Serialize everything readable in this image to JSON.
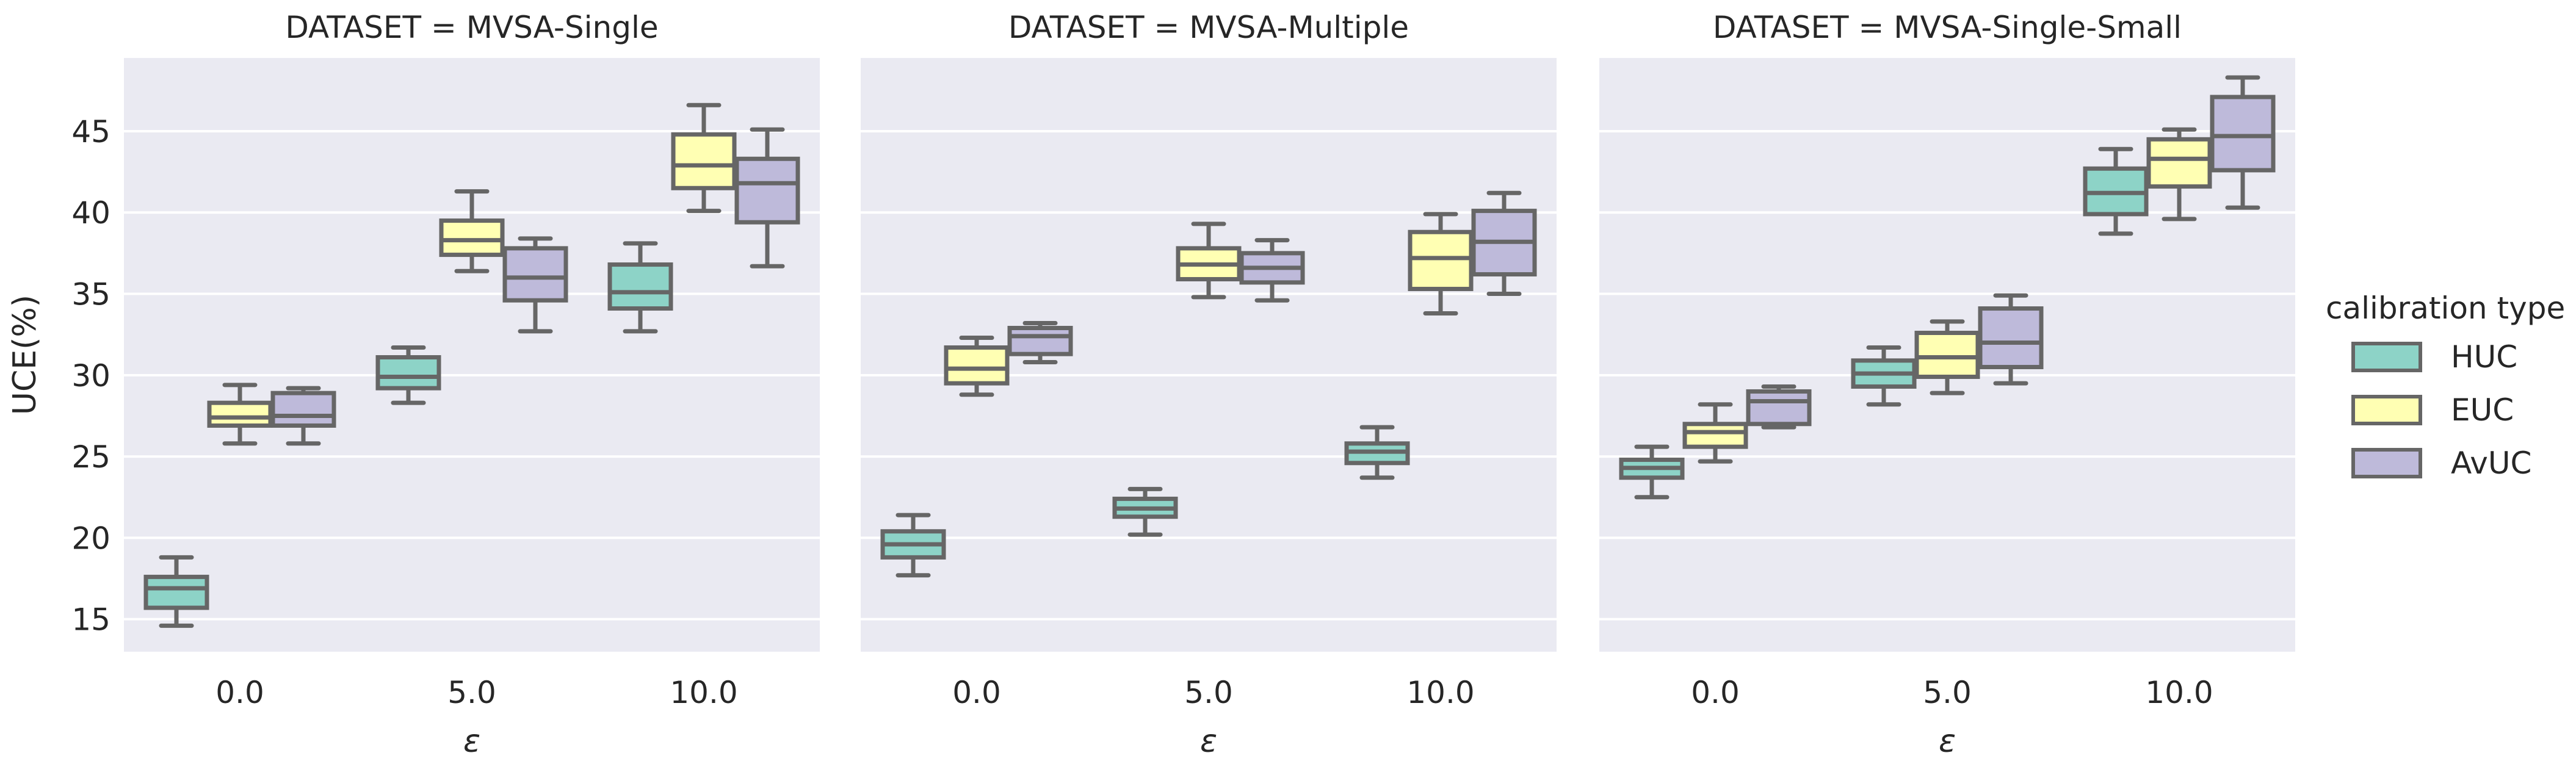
{
  "figure": {
    "ylabel": "UCE(%)",
    "xlabel": "ε",
    "legend_title": "calibration type"
  },
  "chart_data": {
    "type": "box",
    "facet_titles": [
      "DATASET = MVSA-Single",
      "DATASET = MVSA-Multiple",
      "DATASET = MVSA-Single-Small"
    ],
    "categories": [
      "0.0",
      "5.0",
      "10.0"
    ],
    "xlabel": "ε",
    "ylabel": "UCE(%)",
    "yticks": [
      15,
      20,
      25,
      30,
      35,
      40,
      45
    ],
    "ylim": [
      13,
      49.5
    ],
    "grid": true,
    "legend": {
      "title": "calibration type",
      "placement": "right",
      "items": [
        {
          "name": "HUC",
          "color": "#8dd3c7"
        },
        {
          "name": "EUC",
          "color": "#ffffb3"
        },
        {
          "name": "AvUC",
          "color": "#bebada"
        }
      ]
    },
    "colors": {
      "background": "#eaeaf2",
      "grid": "#ffffff",
      "box_edge": "#666666",
      "text": "#262626"
    },
    "facets": [
      {
        "title": "DATASET = MVSA-Single",
        "boxes": [
          {
            "epsilon": "0.0",
            "series": "HUC",
            "whisker_low": 14.6,
            "q1": 15.7,
            "median": 16.9,
            "q3": 17.6,
            "whisker_high": 18.8
          },
          {
            "epsilon": "0.0",
            "series": "EUC",
            "whisker_low": 25.8,
            "q1": 26.9,
            "median": 27.4,
            "q3": 28.3,
            "whisker_high": 29.4
          },
          {
            "epsilon": "0.0",
            "series": "AvUC",
            "whisker_low": 25.8,
            "q1": 26.9,
            "median": 27.5,
            "q3": 28.9,
            "whisker_high": 29.2
          },
          {
            "epsilon": "5.0",
            "series": "HUC",
            "whisker_low": 28.3,
            "q1": 29.2,
            "median": 29.9,
            "q3": 31.1,
            "whisker_high": 31.7
          },
          {
            "epsilon": "5.0",
            "series": "EUC",
            "whisker_low": 36.4,
            "q1": 37.4,
            "median": 38.3,
            "q3": 39.5,
            "whisker_high": 41.3
          },
          {
            "epsilon": "5.0",
            "series": "AvUC",
            "whisker_low": 32.7,
            "q1": 34.6,
            "median": 36.0,
            "q3": 37.8,
            "whisker_high": 38.4
          },
          {
            "epsilon": "10.0",
            "series": "HUC",
            "whisker_low": 32.7,
            "q1": 34.1,
            "median": 35.1,
            "q3": 36.8,
            "whisker_high": 38.1
          },
          {
            "epsilon": "10.0",
            "series": "EUC",
            "whisker_low": 40.1,
            "q1": 41.5,
            "median": 42.9,
            "q3": 44.8,
            "whisker_high": 46.6
          },
          {
            "epsilon": "10.0",
            "series": "AvUC",
            "whisker_low": 36.7,
            "q1": 39.4,
            "median": 41.8,
            "q3": 43.3,
            "whisker_high": 45.1
          }
        ]
      },
      {
        "title": "DATASET = MVSA-Multiple",
        "boxes": [
          {
            "epsilon": "0.0",
            "series": "HUC",
            "whisker_low": 17.7,
            "q1": 18.8,
            "median": 19.6,
            "q3": 20.4,
            "whisker_high": 21.4
          },
          {
            "epsilon": "0.0",
            "series": "EUC",
            "whisker_low": 28.8,
            "q1": 29.5,
            "median": 30.4,
            "q3": 31.7,
            "whisker_high": 32.3
          },
          {
            "epsilon": "0.0",
            "series": "AvUC",
            "whisker_low": 30.8,
            "q1": 31.3,
            "median": 32.4,
            "q3": 32.9,
            "whisker_high": 33.2
          },
          {
            "epsilon": "5.0",
            "series": "HUC",
            "whisker_low": 20.2,
            "q1": 21.3,
            "median": 21.8,
            "q3": 22.4,
            "whisker_high": 23.0
          },
          {
            "epsilon": "5.0",
            "series": "EUC",
            "whisker_low": 34.8,
            "q1": 35.9,
            "median": 36.8,
            "q3": 37.8,
            "whisker_high": 39.3
          },
          {
            "epsilon": "5.0",
            "series": "AvUC",
            "whisker_low": 34.6,
            "q1": 35.7,
            "median": 36.6,
            "q3": 37.5,
            "whisker_high": 38.3
          },
          {
            "epsilon": "10.0",
            "series": "HUC",
            "whisker_low": 23.7,
            "q1": 24.6,
            "median": 25.3,
            "q3": 25.8,
            "whisker_high": 26.8
          },
          {
            "epsilon": "10.0",
            "series": "EUC",
            "whisker_low": 33.8,
            "q1": 35.3,
            "median": 37.2,
            "q3": 38.8,
            "whisker_high": 39.9
          },
          {
            "epsilon": "10.0",
            "series": "AvUC",
            "whisker_low": 35.0,
            "q1": 36.2,
            "median": 38.2,
            "q3": 40.1,
            "whisker_high": 41.2
          }
        ]
      },
      {
        "title": "DATASET = MVSA-Single-Small",
        "boxes": [
          {
            "epsilon": "0.0",
            "series": "HUC",
            "whisker_low": 22.5,
            "q1": 23.7,
            "median": 24.3,
            "q3": 24.8,
            "whisker_high": 25.6
          },
          {
            "epsilon": "0.0",
            "series": "EUC",
            "whisker_low": 24.7,
            "q1": 25.6,
            "median": 26.5,
            "q3": 27.0,
            "whisker_high": 28.2
          },
          {
            "epsilon": "0.0",
            "series": "AvUC",
            "whisker_low": 26.8,
            "q1": 27.0,
            "median": 28.4,
            "q3": 29.0,
            "whisker_high": 29.3
          },
          {
            "epsilon": "5.0",
            "series": "HUC",
            "whisker_low": 28.2,
            "q1": 29.3,
            "median": 30.1,
            "q3": 30.9,
            "whisker_high": 31.7
          },
          {
            "epsilon": "5.0",
            "series": "EUC",
            "whisker_low": 28.9,
            "q1": 29.9,
            "median": 31.1,
            "q3": 32.6,
            "whisker_high": 33.3
          },
          {
            "epsilon": "5.0",
            "series": "AvUC",
            "whisker_low": 29.5,
            "q1": 30.5,
            "median": 32.0,
            "q3": 34.1,
            "whisker_high": 34.9
          },
          {
            "epsilon": "10.0",
            "series": "HUC",
            "whisker_low": 38.7,
            "q1": 39.9,
            "median": 41.2,
            "q3": 42.7,
            "whisker_high": 43.9
          },
          {
            "epsilon": "10.0",
            "series": "EUC",
            "whisker_low": 39.6,
            "q1": 41.6,
            "median": 43.3,
            "q3": 44.5,
            "whisker_high": 45.1
          },
          {
            "epsilon": "10.0",
            "series": "AvUC",
            "whisker_low": 40.3,
            "q1": 42.6,
            "median": 44.7,
            "q3": 47.1,
            "whisker_high": 48.3
          }
        ]
      }
    ]
  }
}
